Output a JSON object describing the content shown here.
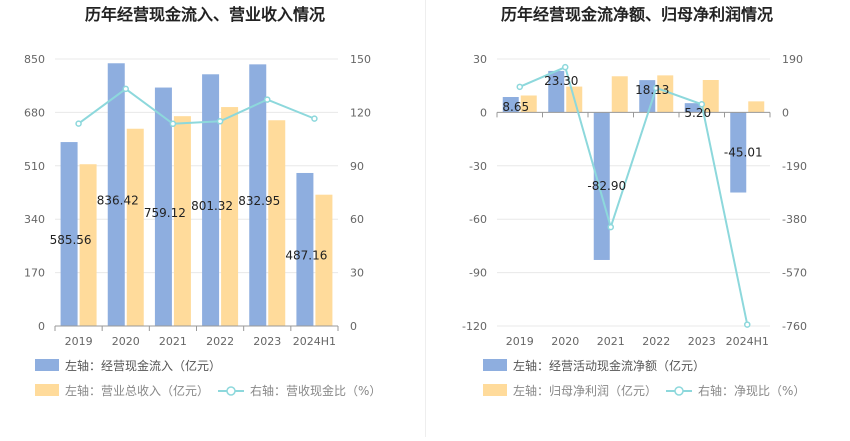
{
  "colors": {
    "bar1": "#8eaedf",
    "bar2": "#ffdb9b",
    "line": "#8dd8dc",
    "grid": "#e8e8e8",
    "axis": "#999999"
  },
  "chart_data": [
    {
      "type": "bar",
      "title": "历年经营现金流入、营业收入情况",
      "categories": [
        "2019",
        "2020",
        "2021",
        "2022",
        "2023",
        "2024H1"
      ],
      "y_left": {
        "ticks": [
          "0",
          "170",
          "340",
          "510",
          "680",
          "850"
        ],
        "min": 0,
        "max": 850
      },
      "y_right": {
        "ticks": [
          "0",
          "30",
          "60",
          "90",
          "120",
          "150"
        ],
        "min": 0,
        "max": 150
      },
      "series": [
        {
          "name": "左轴：经营现金流入（亿元）",
          "axis": "left",
          "kind": "bar",
          "values": [
            585.56,
            836.42,
            759.12,
            801.32,
            832.95,
            487.16
          ],
          "labels": [
            "585.56",
            "836.42",
            "759.12",
            "801.32",
            "832.95",
            "487.16"
          ]
        },
        {
          "name": "左轴：营业总收入（亿元）",
          "axis": "left",
          "kind": "bar",
          "values": [
            515,
            628,
            668,
            697,
            655,
            418
          ]
        },
        {
          "name": "右轴：营收现金比（%）",
          "axis": "right",
          "kind": "line",
          "values": [
            113.7,
            133.2,
            113.6,
            115,
            127.2,
            116.5
          ]
        }
      ]
    },
    {
      "type": "bar",
      "title": "历年经营现金流净额、归母净利润情况",
      "categories": [
        "2019",
        "2020",
        "2021",
        "2022",
        "2023",
        "2024H1"
      ],
      "y_left": {
        "ticks": [
          "-120",
          "-90",
          "-60",
          "-30",
          "0",
          "30"
        ],
        "min": -120,
        "max": 30
      },
      "y_right": {
        "ticks": [
          "-760",
          "-570",
          "-380",
          "-190",
          "0",
          "190"
        ],
        "min": -760,
        "max": 190
      },
      "series": [
        {
          "name": "左轴：经营活动现金流净额（亿元）",
          "axis": "left",
          "kind": "bar",
          "values": [
            8.65,
            23.3,
            -82.9,
            18.13,
            5.2,
            -45.01
          ],
          "labels": [
            "8.65",
            "23.30",
            "-82.90",
            "18.13",
            "5.20",
            "-45.01"
          ]
        },
        {
          "name": "左轴：归母净利润（亿元）",
          "axis": "left",
          "kind": "bar",
          "values": [
            9.5,
            14.5,
            20.3,
            20.8,
            18.2,
            6.2
          ]
        },
        {
          "name": "右轴：净现比（%）",
          "axis": "right",
          "kind": "line",
          "values": [
            91,
            161,
            -408,
            87,
            29,
            -755
          ]
        }
      ]
    }
  ]
}
